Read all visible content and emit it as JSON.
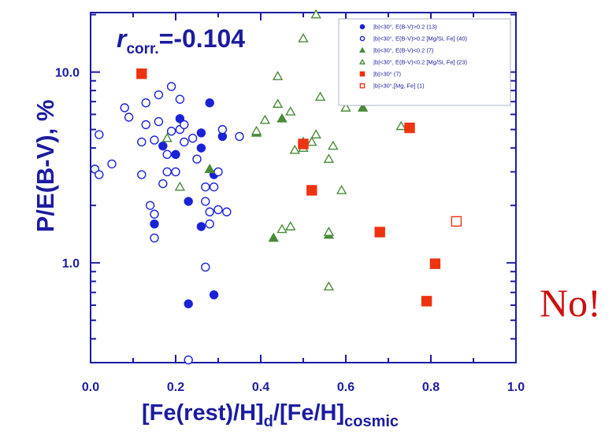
{
  "colors": {
    "axis": "#1c1ca0",
    "blue": "#1a22d6",
    "green": "#4b8a3a",
    "red": "#ee3311",
    "note": "#cc1010"
  },
  "annotation": {
    "r_prefix": "r",
    "r_sub": "corr.",
    "r_value": "=-0.104"
  },
  "note_text": "No!",
  "chart_data": {
    "type": "scatter",
    "xlabel": {
      "main": "[Fe(rest)/H]",
      "sub_d": "d",
      "mid": "/[Fe/H]",
      "sub_cosmic": "cosmic"
    },
    "ylabel": "P/E(B-V), %",
    "xlim": [
      0.0,
      1.0
    ],
    "ylim": [
      0.3,
      20.5
    ],
    "yscale": "log",
    "grid": false,
    "legend_position": "top-right",
    "x_ticks": [
      "0.0",
      "0.2",
      "0.4",
      "0.6",
      "0.8",
      "1.0"
    ],
    "x_tick_values": [
      0.0,
      0.2,
      0.4,
      0.6,
      0.8,
      1.0
    ],
    "y_ticks": [
      "1.0",
      "10.0"
    ],
    "y_tick_values": [
      1.0,
      10.0
    ],
    "series": [
      {
        "name": "|b|<30°, E(B-V)>0.2 (13)",
        "marker": "circle",
        "filled": true,
        "color": "#1a22d6",
        "points": [
          [
            0.28,
            6.9
          ],
          [
            0.21,
            5.7
          ],
          [
            0.26,
            4.8
          ],
          [
            0.31,
            4.6
          ],
          [
            0.17,
            4.1
          ],
          [
            0.26,
            4.0
          ],
          [
            0.29,
            2.9
          ],
          [
            0.23,
            2.1
          ],
          [
            0.15,
            1.6
          ],
          [
            0.26,
            1.55
          ],
          [
            0.29,
            0.68
          ],
          [
            0.23,
            0.61
          ],
          [
            0.2,
            3.7
          ]
        ]
      },
      {
        "name": "|b|<30°, E(B-V)>0.2 [Mg/Si, Fe] (40)",
        "marker": "circle",
        "filled": false,
        "color": "#1a22d6",
        "points": [
          [
            0.02,
            4.7
          ],
          [
            0.01,
            3.1
          ],
          [
            0.02,
            2.9
          ],
          [
            0.05,
            3.3
          ],
          [
            0.08,
            6.5
          ],
          [
            0.09,
            5.8
          ],
          [
            0.12,
            2.9
          ],
          [
            0.12,
            4.3
          ],
          [
            0.13,
            5.3
          ],
          [
            0.13,
            6.9
          ],
          [
            0.14,
            2.0
          ],
          [
            0.15,
            1.8
          ],
          [
            0.15,
            1.35
          ],
          [
            0.15,
            4.4
          ],
          [
            0.16,
            5.5
          ],
          [
            0.16,
            7.6
          ],
          [
            0.17,
            2.6
          ],
          [
            0.18,
            3.0
          ],
          [
            0.18,
            3.7
          ],
          [
            0.19,
            4.9
          ],
          [
            0.19,
            8.4
          ],
          [
            0.2,
            3.0
          ],
          [
            0.21,
            5.0
          ],
          [
            0.21,
            7.2
          ],
          [
            0.22,
            4.3
          ],
          [
            0.22,
            5.3
          ],
          [
            0.24,
            4.5
          ],
          [
            0.25,
            3.5
          ],
          [
            0.27,
            2.5
          ],
          [
            0.27,
            2.1
          ],
          [
            0.28,
            1.85
          ],
          [
            0.29,
            2.5
          ],
          [
            0.3,
            1.9
          ],
          [
            0.28,
            1.6
          ],
          [
            0.32,
            1.85
          ],
          [
            0.3,
            3.0
          ],
          [
            0.31,
            5.0
          ],
          [
            0.35,
            4.6
          ],
          [
            0.27,
            0.95
          ],
          [
            0.23,
            0.31
          ]
        ]
      },
      {
        "name": "|b|<30°, E(B-V)<0.2 (7)",
        "marker": "triangle",
        "filled": true,
        "color": "#4b8a3a",
        "points": [
          [
            0.28,
            3.1
          ],
          [
            0.39,
            4.8
          ],
          [
            0.45,
            5.7
          ],
          [
            0.5,
            4.3
          ],
          [
            0.64,
            6.5
          ],
          [
            0.43,
            1.35
          ],
          [
            0.56,
            1.4
          ]
        ]
      },
      {
        "name": "|b|<30°, E(B-V)<0.2 [Mg/Si, Fe] (23)",
        "marker": "triangle",
        "filled": false,
        "color": "#4b8a3a",
        "points": [
          [
            0.53,
            20.0
          ],
          [
            0.5,
            15.0
          ],
          [
            0.44,
            9.5
          ],
          [
            0.54,
            7.4
          ],
          [
            0.44,
            6.8
          ],
          [
            0.47,
            6.2
          ],
          [
            0.6,
            6.5
          ],
          [
            0.73,
            5.2
          ],
          [
            0.41,
            5.6
          ],
          [
            0.39,
            4.9
          ],
          [
            0.21,
            2.5
          ],
          [
            0.48,
            3.9
          ],
          [
            0.5,
            4.0
          ],
          [
            0.53,
            4.7
          ],
          [
            0.56,
            3.5
          ],
          [
            0.57,
            4.1
          ],
          [
            0.59,
            2.4
          ],
          [
            0.45,
            1.5
          ],
          [
            0.47,
            1.55
          ],
          [
            0.56,
            1.45
          ],
          [
            0.56,
            0.75
          ],
          [
            0.18,
            4.5
          ],
          [
            0.52,
            4.3
          ]
        ]
      },
      {
        "name": "|b|>30° (7)",
        "marker": "square",
        "filled": true,
        "color": "#ee3311",
        "points": [
          [
            0.12,
            9.8
          ],
          [
            0.5,
            4.2
          ],
          [
            0.75,
            5.1
          ],
          [
            0.52,
            2.4
          ],
          [
            0.68,
            1.45
          ],
          [
            0.81,
            0.99
          ],
          [
            0.79,
            0.63
          ]
        ]
      },
      {
        "name": "|b|>30°,[Mg, Fe] (1)",
        "marker": "square",
        "filled": false,
        "color": "#ee3311",
        "points": [
          [
            0.86,
            1.65
          ]
        ]
      }
    ]
  }
}
